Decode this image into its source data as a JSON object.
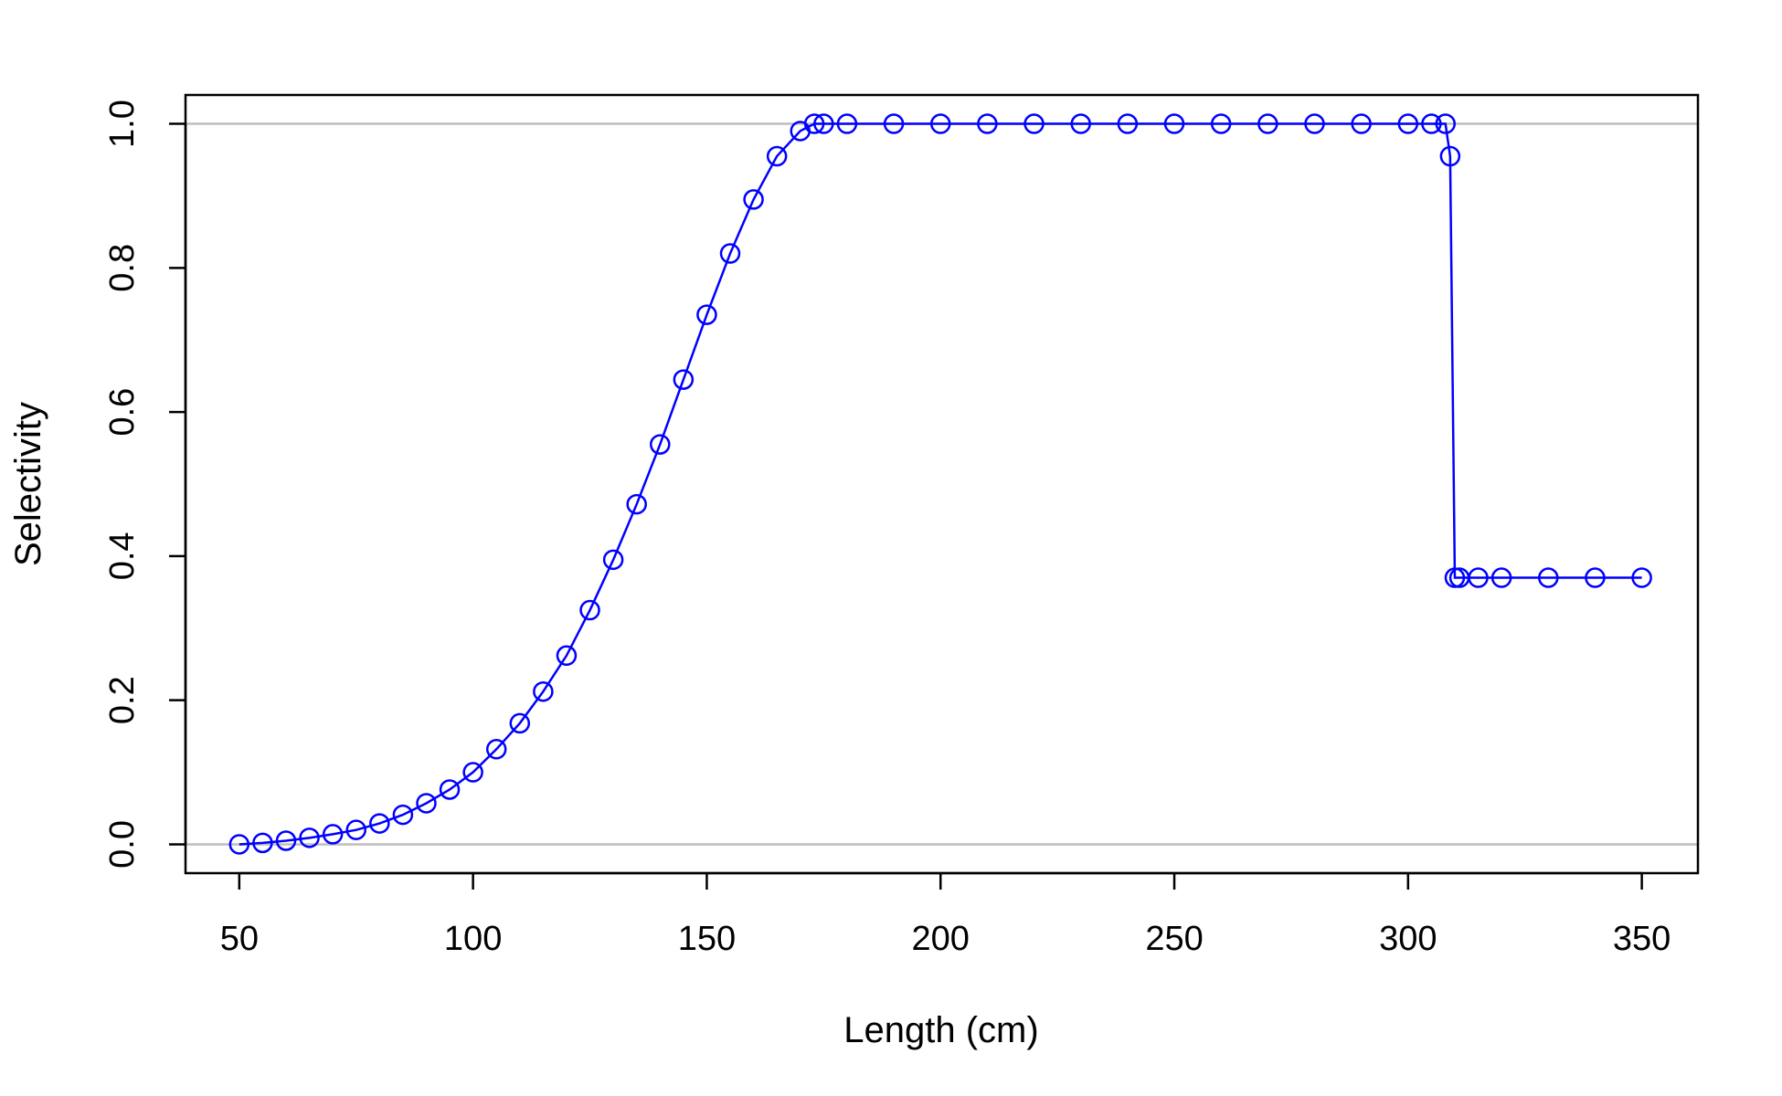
{
  "chart_data": {
    "type": "line",
    "title": "",
    "xlabel": "Length (cm)",
    "ylabel": "Selectivity",
    "xlim": [
      38.5,
      362
    ],
    "ylim": [
      -0.04,
      1.04
    ],
    "x_ticks": [
      50,
      100,
      150,
      200,
      250,
      300,
      350
    ],
    "y_ticks": [
      0.0,
      0.2,
      0.4,
      0.6,
      0.8,
      1.0
    ],
    "x_tick_labels": [
      "50",
      "100",
      "150",
      "200",
      "250",
      "300",
      "350"
    ],
    "y_tick_labels": [
      "0.0",
      "0.2",
      "0.4",
      "0.6",
      "0.8",
      "1.0"
    ],
    "reference_lines": [
      0,
      1
    ],
    "colors": {
      "series": "#0000ff",
      "reference": "#bebebe",
      "axis": "#000000"
    },
    "series": [
      {
        "marker": "open-circle",
        "line": true,
        "x": [
          50,
          55,
          60,
          65,
          70,
          75,
          80,
          85,
          90,
          95,
          100,
          105,
          110,
          115,
          120,
          125,
          130,
          135,
          140,
          145,
          150,
          155,
          160,
          165,
          170,
          173,
          175,
          180,
          190,
          200,
          210,
          220,
          230,
          240,
          250,
          260,
          270,
          280,
          290,
          300,
          305,
          308,
          309,
          310,
          311,
          315,
          320,
          330,
          340,
          350
        ],
        "y": [
          0.0,
          0.002,
          0.005,
          0.009,
          0.014,
          0.02,
          0.029,
          0.041,
          0.057,
          0.076,
          0.1,
          0.132,
          0.168,
          0.212,
          0.262,
          0.325,
          0.395,
          0.472,
          0.555,
          0.645,
          0.735,
          0.82,
          0.895,
          0.955,
          0.99,
          1.0,
          1.0,
          1.0,
          1.0,
          1.0,
          1.0,
          1.0,
          1.0,
          1.0,
          1.0,
          1.0,
          1.0,
          1.0,
          1.0,
          1.0,
          1.0,
          1.0,
          0.955,
          0.37,
          0.37,
          0.37,
          0.37,
          0.37,
          0.37,
          0.37
        ]
      }
    ]
  }
}
